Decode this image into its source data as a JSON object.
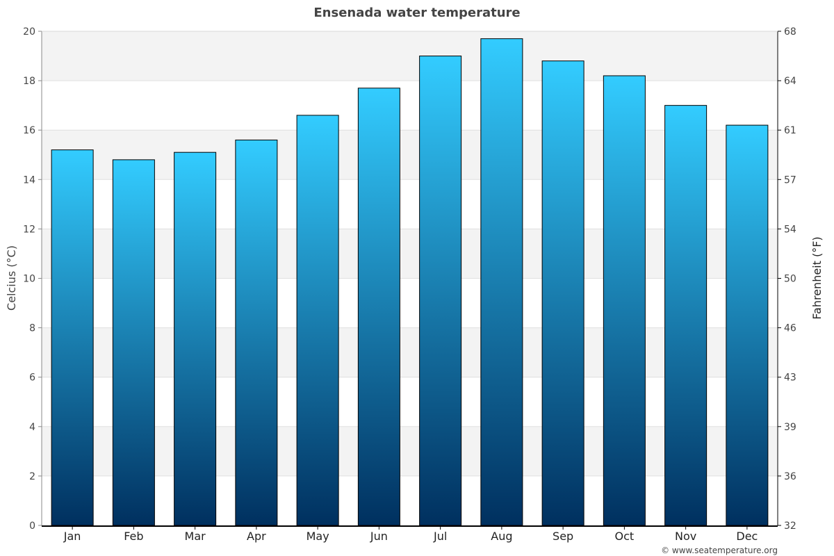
{
  "chart_data": {
    "type": "bar",
    "title": "Ensenada water temperature",
    "categories": [
      "Jan",
      "Feb",
      "Mar",
      "Apr",
      "May",
      "Jun",
      "Jul",
      "Aug",
      "Sep",
      "Oct",
      "Nov",
      "Dec"
    ],
    "values": [
      15.2,
      14.8,
      15.1,
      15.6,
      16.6,
      17.7,
      19.0,
      19.7,
      18.8,
      18.2,
      17.0,
      16.2
    ],
    "ylabel": "Celcius (°C)",
    "ylabel_right": "Fahrenheit (°F)",
    "ylim": [
      0,
      20
    ],
    "yticks": [
      "0",
      "2",
      "4",
      "6",
      "8",
      "10",
      "12",
      "14",
      "16",
      "18",
      "20"
    ],
    "yticks_right": [
      "32",
      "36",
      "39",
      "43",
      "46",
      "50",
      "54",
      "57",
      "61",
      "64",
      "68"
    ],
    "grid": true,
    "colors": {
      "bar_top": "#33ccff",
      "bar_bottom": "#00305f",
      "band": "#f3f3f3"
    }
  },
  "footer": {
    "credit": "© www.seatemperature.org"
  }
}
